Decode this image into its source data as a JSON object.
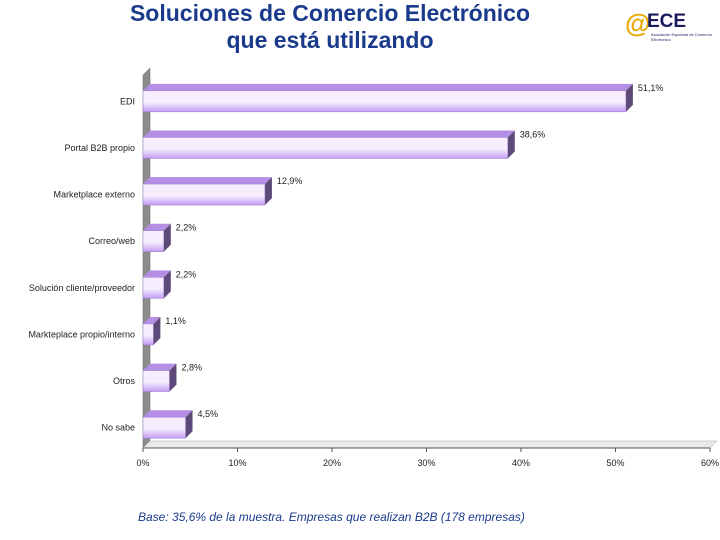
{
  "header": {
    "title_line1": "Soluciones de Comercio Electrónico",
    "title_line2": "que está utilizando"
  },
  "logo": {
    "mark": "@",
    "word": "ECE",
    "subtitle": "Asociación Española de Comercio Electrónico"
  },
  "footnote": "Base: 35,6% de la muestra. Empresas que realizan B2B (178 empresas)",
  "colors": {
    "title": "#1a3a8c",
    "bar_light": "#f6eefe",
    "bar_dark": "#c39cf4",
    "bar_top": "#b58ee6",
    "bar_side": "#5e4a78",
    "wall": "#8c8c8c",
    "axis": "#555555"
  },
  "chart_data": {
    "type": "bar",
    "orientation": "horizontal",
    "categories": [
      "EDI",
      "Portal B2B propio",
      "Marketplace externo",
      "Correo/web",
      "Solución cliente/proveedor",
      "Markteplace propio/interno",
      "Otros",
      "No sabe"
    ],
    "values": [
      51.1,
      38.6,
      12.9,
      2.2,
      2.2,
      1.1,
      2.8,
      4.5
    ],
    "value_labels": [
      "51,1%",
      "38,6%",
      "12,9%",
      "2,2%",
      "2,2%",
      "1,1%",
      "2,8%",
      "4,5%"
    ],
    "xlim": [
      0,
      60
    ],
    "xticks": [
      0,
      10,
      20,
      30,
      40,
      50,
      60
    ],
    "xtick_labels": [
      "0%",
      "10%",
      "20%",
      "30%",
      "40%",
      "50%",
      "60%"
    ],
    "grid": false,
    "legend": "none"
  }
}
